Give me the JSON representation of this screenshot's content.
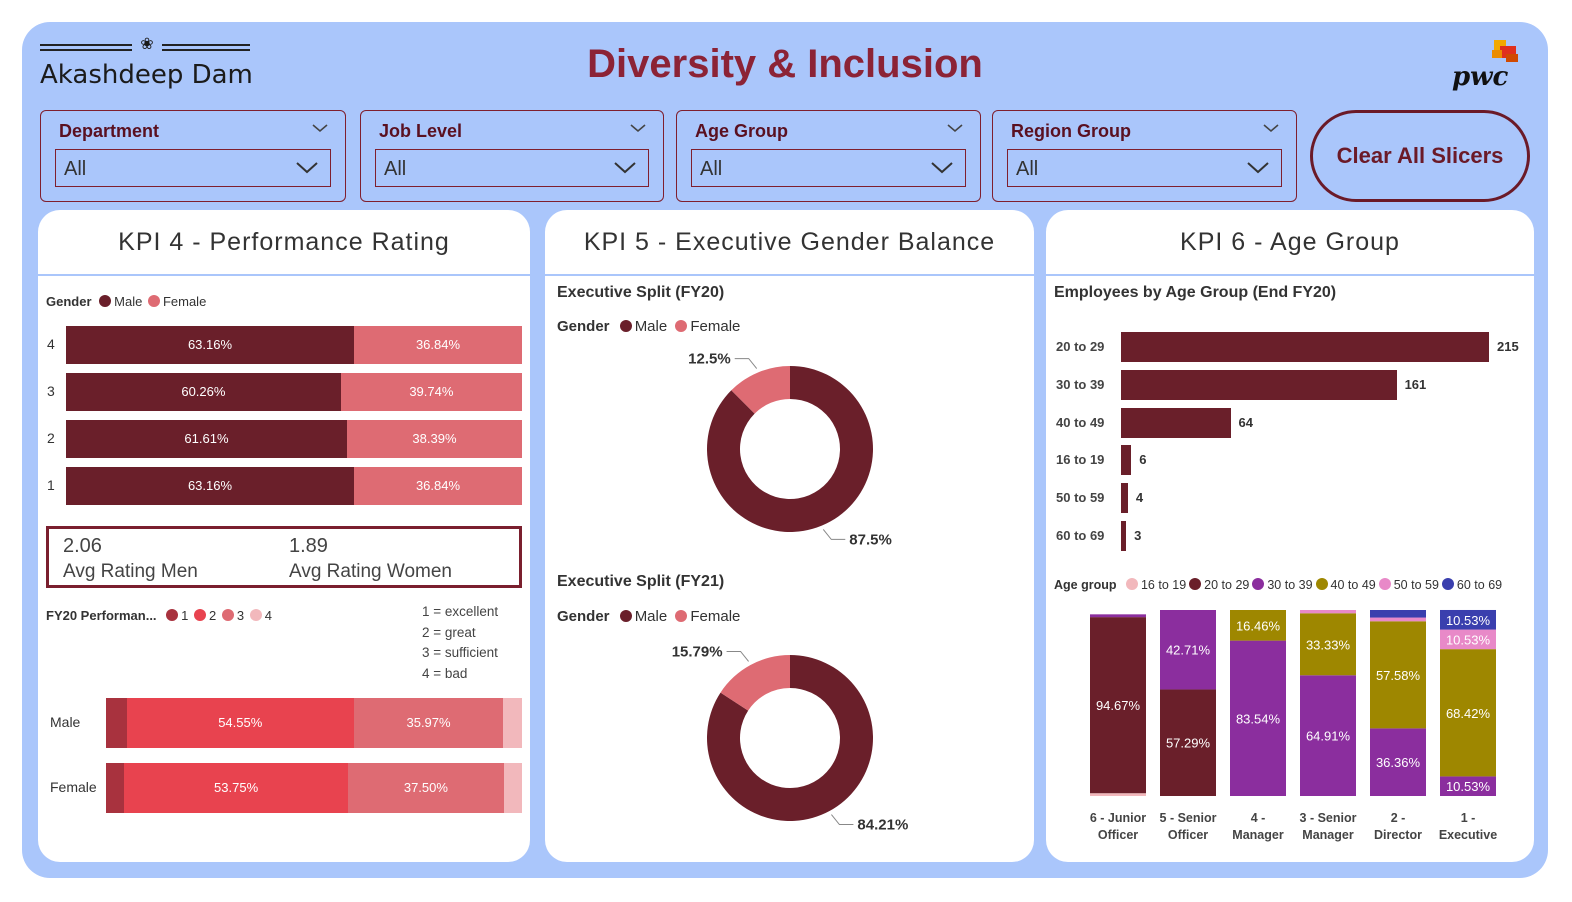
{
  "header": {
    "brand": "Akashdeep Dam",
    "title": "Diversity & Inclusion",
    "logo_text": "pwc"
  },
  "colors": {
    "male": "#6a1f2a",
    "female": "#de6b73",
    "rating1": "#a8323e",
    "rating2": "#e8434f",
    "rating3": "#de6b73",
    "rating4": "#f2b8bc",
    "frame": "#aac6fb"
  },
  "slicers": [
    {
      "label": "Department",
      "value": "All"
    },
    {
      "label": "Job Level",
      "value": "All"
    },
    {
      "label": "Age Group",
      "value": "All"
    },
    {
      "label": "Region Group",
      "value": "All"
    }
  ],
  "clear_button": "Clear All Slicers",
  "kpi4": {
    "title": "KPI 4 - Performance Rating",
    "legend_title": "Gender",
    "legend": [
      "Male",
      "Female"
    ],
    "bars": [
      {
        "label": "4",
        "male": 63.16,
        "female": 36.84,
        "male_text": "63.16%",
        "female_text": "36.84%"
      },
      {
        "label": "3",
        "male": 60.26,
        "female": 39.74,
        "male_text": "60.26%",
        "female_text": "39.74%"
      },
      {
        "label": "2",
        "male": 61.61,
        "female": 38.39,
        "male_text": "61.61%",
        "female_text": "38.39%"
      },
      {
        "label": "1",
        "male": 63.16,
        "female": 36.84,
        "male_text": "63.16%",
        "female_text": "36.84%"
      }
    ],
    "avg_men_value": "2.06",
    "avg_men_label": "Avg Rating Men",
    "avg_women_value": "1.89",
    "avg_women_label": "Avg Rating Women",
    "perf_legend_title": "FY20 Performan...",
    "perf_legend": [
      "1",
      "2",
      "3",
      "4"
    ],
    "rating_key": [
      "1 = excellent",
      "2 = great",
      "3 = sufficient",
      "4 = bad"
    ],
    "perf_bars": [
      {
        "label": "Male",
        "values": [
          5.0,
          54.55,
          35.97,
          4.48
        ],
        "texts": [
          "",
          "54.55%",
          "35.97%",
          ""
        ]
      },
      {
        "label": "Female",
        "values": [
          4.4,
          53.75,
          37.5,
          4.35
        ],
        "texts": [
          "",
          "53.75%",
          "37.50%",
          ""
        ]
      }
    ]
  },
  "kpi5": {
    "title": "KPI 5 - Executive Gender Balance",
    "charts": [
      {
        "title": "Executive Split (FY20)",
        "legend_title": "Gender",
        "legend": [
          "Male",
          "Female"
        ],
        "male": 87.5,
        "female": 12.5,
        "male_text": "87.5%",
        "female_text": "12.5%"
      },
      {
        "title": "Executive Split (FY21)",
        "legend_title": "Gender",
        "legend": [
          "Male",
          "Female"
        ],
        "male": 84.21,
        "female": 15.79,
        "male_text": "84.21%",
        "female_text": "15.79%"
      }
    ]
  },
  "kpi6": {
    "title": "KPI 6 - Age Group",
    "bar_title": "Employees by Age Group (End FY20)",
    "legend_title": "Age group",
    "legend": [
      "16 to 19",
      "20 to 29",
      "30 to 39",
      "40 to 49",
      "50 to 59",
      "60 to 69"
    ],
    "legend_colors": [
      "#f2b8bc",
      "#6a1f2a",
      "#8b2e9e",
      "#9e8700",
      "#e889c8",
      "#3a3fae"
    ]
  },
  "chart_data": [
    {
      "type": "bar",
      "title": "Employees by Age Group (End FY20)",
      "categories": [
        "20 to 29",
        "30 to 39",
        "40 to 49",
        "16 to 19",
        "50 to 59",
        "60 to 69"
      ],
      "values": [
        215,
        161,
        64,
        6,
        4,
        3
      ]
    },
    {
      "type": "bar",
      "stacked": true,
      "categories": [
        "6 - Junior Officer",
        "5 - Senior Officer",
        "4 - Manager",
        "3 - Senior Manager",
        "2 - Director",
        "1 - Executive"
      ],
      "category_lines": [
        [
          "6 - Junior",
          "Officer"
        ],
        [
          "5 - Senior",
          "Officer"
        ],
        [
          "4 -",
          "Manager"
        ],
        [
          "3 - Senior",
          "Manager"
        ],
        [
          "2 -",
          "Director"
        ],
        [
          "1 -",
          "Executive"
        ]
      ],
      "series": [
        {
          "name": "16 to 19",
          "values": [
            1.5,
            0,
            0,
            0,
            0,
            0
          ]
        },
        {
          "name": "20 to 29",
          "values": [
            94.67,
            57.29,
            0,
            0,
            0,
            0
          ]
        },
        {
          "name": "30 to 39",
          "values": [
            1.5,
            42.71,
            83.54,
            64.91,
            36.36,
            10.53
          ]
        },
        {
          "name": "40 to 49",
          "values": [
            0,
            0,
            16.46,
            33.33,
            57.58,
            68.42
          ]
        },
        {
          "name": "50 to 59",
          "values": [
            0,
            0,
            0,
            1.76,
            2.0,
            10.53
          ]
        },
        {
          "name": "60 to 69",
          "values": [
            0,
            0,
            0,
            0,
            4.06,
            10.53
          ]
        }
      ],
      "labels": [
        [
          "",
          "94.67%",
          "",
          "",
          "",
          ""
        ],
        [
          "",
          "57.29%",
          "42.71%",
          "",
          "",
          ""
        ],
        [
          "",
          "",
          "83.54%",
          "16.46%",
          "",
          ""
        ],
        [
          "",
          "",
          "64.91%",
          "33.33%",
          "",
          ""
        ],
        [
          "",
          "",
          "36.36%",
          "57.58%",
          "",
          ""
        ],
        [
          "",
          "",
          "10.53%",
          "68.42%",
          "10.53%",
          "10.53%"
        ]
      ]
    }
  ]
}
